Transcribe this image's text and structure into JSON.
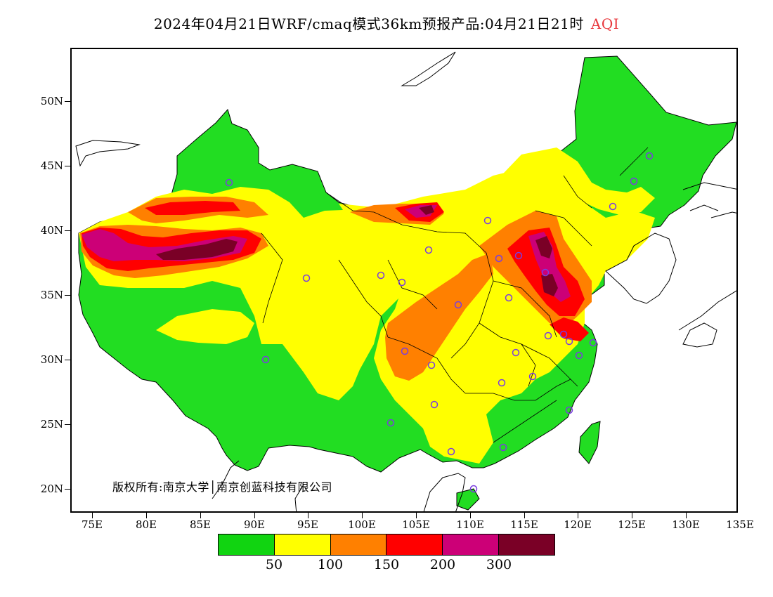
{
  "title": {
    "text": "2024年04月21日WRF/cmaq模式36km预报产品:04月21日21时",
    "variable": "AQI",
    "variable_color": "#e8383d"
  },
  "axes": {
    "y_labels": [
      "50N",
      "45N",
      "40N",
      "35N",
      "30N",
      "25N",
      "20N"
    ],
    "x_labels": [
      "75E",
      "80E",
      "85E",
      "90E",
      "95E",
      "100E",
      "105E",
      "110E",
      "115E",
      "120E",
      "125E",
      "130E",
      "135E"
    ]
  },
  "copyright": "版权所有:南京大学│南京创蓝科技有限公司",
  "legend": {
    "colors": [
      "#11d411",
      "#ffff00",
      "#ff8000",
      "#ff0000",
      "#cc0077",
      "#7a0026"
    ],
    "levels": [
      "50",
      "100",
      "150",
      "200",
      "300"
    ]
  },
  "map": {
    "station_marker_color": "#7a3de0",
    "zones": {
      "green": "#22dd22",
      "yellow": "#ffff00",
      "orange": "#ff8000",
      "red": "#ff0000",
      "magenta": "#cc0077",
      "maroon": "#7a0026"
    }
  }
}
